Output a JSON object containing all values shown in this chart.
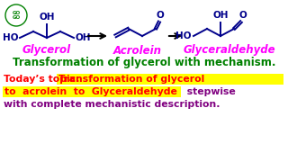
{
  "bg_color": "#ffffff",
  "title_line": "Transformation of glycerol with mechanism.",
  "title_color": "#008000",
  "title_fontsize": 8.5,
  "topic_prefix": "Today’s topic: ",
  "topic_prefix_color": "#ff0000",
  "topic_hl_line1": "Transformation of glycerol",
  "topic_hl_line2": "to  acrolein  to  Glyceraldehyde",
  "topic_hl_color": "#ff0000",
  "topic_hl_bg": "#ffff00",
  "topic_suffix_line2": " stepwise",
  "topic_suffix_line3": "with complete mechanistic description.",
  "topic_suffix_color": "#800080",
  "topic_fontsize": 7.8,
  "glycerol_label": "Glycerol",
  "acrolein_label": "Acrolein",
  "glyceraldehyde_label": "Glyceraldehyde",
  "label_color": "#ff00ff",
  "struct_color": "#00008b",
  "arrow_color": "#000000",
  "logo_color": "#008000"
}
